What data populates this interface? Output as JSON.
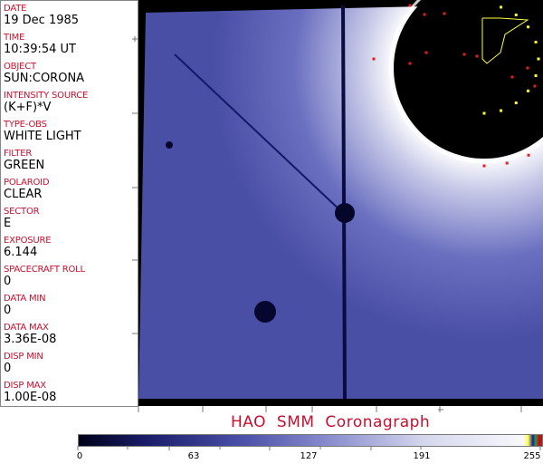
{
  "fields": [
    {
      "label": "DATE",
      "value": "19 Dec 1985"
    },
    {
      "label": "TIME",
      "value": "10:39:54 UT"
    },
    {
      "label": "OBJECT",
      "value": "SUN:CORONA"
    },
    {
      "label": "INTENSITY SOURCE",
      "value": "(K+F)*V"
    },
    {
      "label": "TYPE-OBS",
      "value": "WHITE LIGHT"
    },
    {
      "label": "FILTER",
      "value": "GREEN"
    },
    {
      "label": "POLAROID",
      "value": "CLEAR"
    },
    {
      "label": "SECTOR",
      "value": "E"
    },
    {
      "label": "EXPOSURE",
      "value": "6.144"
    },
    {
      "label": "SPACECRAFT ROLL",
      "value": "0"
    },
    {
      "label": "DATA MIN",
      "value": "0"
    },
    {
      "label": "DATA MAX",
      "value": "3.36E-08"
    },
    {
      "label": "DISP MIN",
      "value": "0"
    },
    {
      "label": "DISP MAX",
      "value": "1.00E-08"
    }
  ],
  "title": "HAO SMM Coronagraph",
  "colorbar": {
    "ticks": [
      "0",
      "63",
      "127",
      "191",
      "255"
    ],
    "colormap": "black-blue-white"
  },
  "colors": {
    "label": "#c8102e",
    "corona": "#5a5fb0"
  }
}
